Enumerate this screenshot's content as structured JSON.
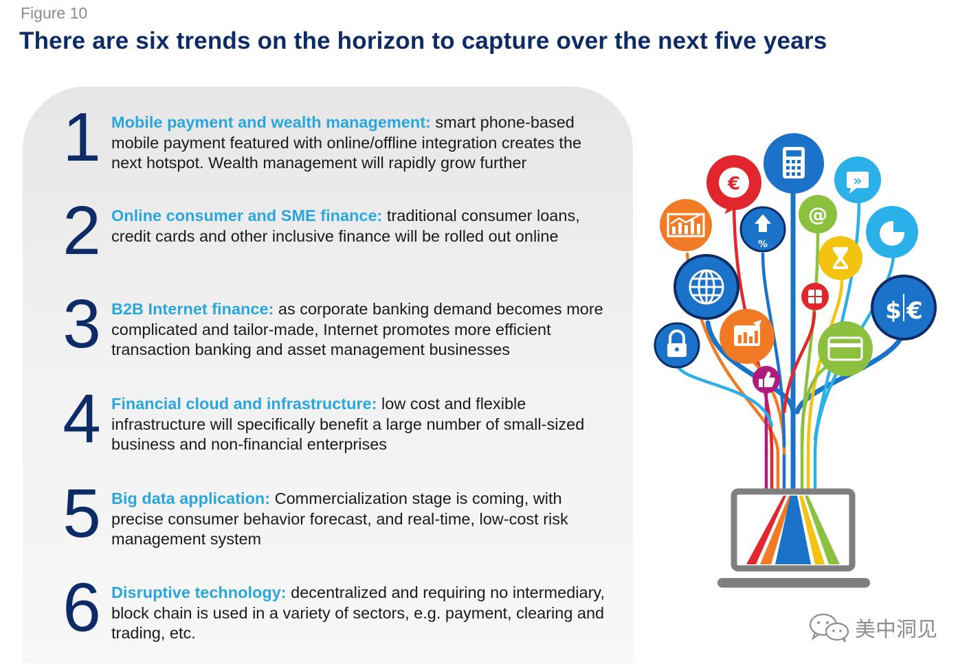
{
  "figure_label": "Figure 10",
  "title": "There are six trends on the horizon to capture over the next five years",
  "trends": [
    {
      "number": "1",
      "heading": "Mobile payment and wealth management:",
      "body": " smart phone-based mobile payment featured with online/offline integration creates the next hotspot. Wealth management will rapidly grow further"
    },
    {
      "number": "2",
      "heading": "Online consumer and SME finance:",
      "body": " traditional consumer loans, credit cards and other inclusive finance will be rolled out online"
    },
    {
      "number": "3",
      "heading": "B2B Internet finance:",
      "body": " as corporate banking demand becomes more complicated and tailor-made, Internet promotes more efficient transaction banking and asset management businesses"
    },
    {
      "number": "4",
      "heading": "Financial cloud and infrastructure:",
      "body": " low cost and flexible infrastructure will specifically benefit a large number of small-sized business and non-financial enterprises"
    },
    {
      "number": "5",
      "heading": "Big data application:",
      "body": " Commercialization stage is coming, with precise consumer behavior forecast, and real-time, low-cost risk management system"
    },
    {
      "number": "6",
      "heading": "Disruptive technology:",
      "body": " decentralized and requiring no intermediary, block chain is used in a variety of sectors, e.g. payment, clearing and trading, etc."
    }
  ],
  "illustration": {
    "icons": [
      "calculator-icon",
      "euro-icon",
      "chevrons-icon",
      "bar-chart-icon",
      "percent-up-icon",
      "at-sign-icon",
      "pie-chart-icon",
      "hourglass-icon",
      "globe-icon",
      "chip-card-icon",
      "dollar-euro-icon",
      "column-chart-icon",
      "lock-icon",
      "credit-card-icon",
      "thumbs-up-icon",
      "laptop-icon"
    ],
    "colors": {
      "navy": "#0d2b66",
      "blue": "#1a73c8",
      "sky": "#2bb0ea",
      "orange": "#f07b24",
      "red": "#e1262d",
      "yellow": "#f2c30f",
      "green": "#8cc03f",
      "magenta": "#b0197e",
      "gray": "#7f7f7f"
    }
  },
  "watermark": {
    "text": "美中洞见",
    "icon": "wechat-icon"
  }
}
